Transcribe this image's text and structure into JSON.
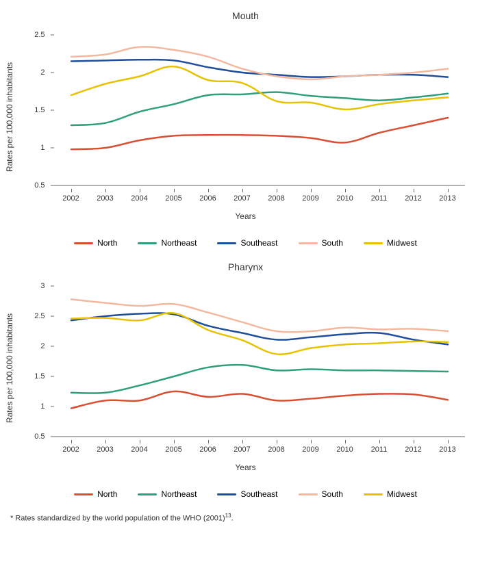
{
  "footnote": "* Rates standardized by the world population of the WHO (2001)",
  "footnote_ref": "13",
  "charts": [
    {
      "title": "Mouth",
      "ylabel": "Rates per 100,000 inhabitants",
      "xlabel": "Years",
      "ylim": [
        0.5,
        2.5
      ],
      "ytick_step": 0.5,
      "yticks": [
        0.5,
        1,
        1.5,
        2,
        2.5
      ],
      "categories": [
        2002,
        2003,
        2004,
        2005,
        2006,
        2007,
        2008,
        2009,
        2010,
        2011,
        2012,
        2013
      ],
      "axis_color": "#666666",
      "tick_fontsize": 11,
      "label_fontsize": 12,
      "title_fontsize": 14,
      "line_width": 2.5,
      "background_color": "#ffffff",
      "series": [
        {
          "name": "North",
          "color": "#d94f34",
          "values": [
            0.98,
            1.0,
            1.1,
            1.16,
            1.17,
            1.17,
            1.16,
            1.13,
            1.07,
            1.2,
            1.3,
            1.4
          ]
        },
        {
          "name": "Northeast",
          "color": "#2f9e7c",
          "values": [
            1.3,
            1.33,
            1.48,
            1.58,
            1.7,
            1.71,
            1.74,
            1.69,
            1.66,
            1.63,
            1.67,
            1.72
          ]
        },
        {
          "name": "Southeast",
          "color": "#1f4e9c",
          "values": [
            2.15,
            2.16,
            2.17,
            2.16,
            2.07,
            2.0,
            1.97,
            1.94,
            1.95,
            1.97,
            1.97,
            1.94
          ]
        },
        {
          "name": "South",
          "color": "#f2b8a0",
          "values": [
            2.21,
            2.24,
            2.34,
            2.3,
            2.21,
            2.05,
            1.95,
            1.91,
            1.95,
            1.97,
            2.0,
            2.05
          ]
        },
        {
          "name": "Midwest",
          "color": "#e6c200",
          "values": [
            1.7,
            1.85,
            1.95,
            2.08,
            1.9,
            1.86,
            1.62,
            1.6,
            1.51,
            1.58,
            1.63,
            1.67
          ]
        }
      ]
    },
    {
      "title": "Pharynx",
      "ylabel": "Rates per 100,000 inhabitants",
      "xlabel": "Years",
      "ylim": [
        0.5,
        3
      ],
      "ytick_step": 0.5,
      "yticks": [
        0.5,
        1,
        1.5,
        2,
        2.5,
        3
      ],
      "categories": [
        2002,
        2003,
        2004,
        2005,
        2006,
        2007,
        2008,
        2009,
        2010,
        2011,
        2012,
        2013
      ],
      "axis_color": "#666666",
      "tick_fontsize": 11,
      "label_fontsize": 12,
      "title_fontsize": 14,
      "line_width": 2.5,
      "background_color": "#ffffff",
      "series": [
        {
          "name": "North",
          "color": "#d94f34",
          "values": [
            0.97,
            1.1,
            1.1,
            1.25,
            1.16,
            1.21,
            1.1,
            1.13,
            1.18,
            1.21,
            1.2,
            1.11
          ]
        },
        {
          "name": "Northeast",
          "color": "#2f9e7c",
          "values": [
            1.23,
            1.23,
            1.35,
            1.5,
            1.65,
            1.69,
            1.6,
            1.62,
            1.6,
            1.6,
            1.59,
            1.58
          ]
        },
        {
          "name": "Southeast",
          "color": "#1f4e9c",
          "values": [
            2.43,
            2.5,
            2.54,
            2.53,
            2.34,
            2.22,
            2.11,
            2.15,
            2.2,
            2.22,
            2.11,
            2.03
          ]
        },
        {
          "name": "South",
          "color": "#f2b8a0",
          "values": [
            2.78,
            2.72,
            2.67,
            2.7,
            2.56,
            2.4,
            2.25,
            2.25,
            2.31,
            2.28,
            2.29,
            2.25
          ]
        },
        {
          "name": "Midwest",
          "color": "#e6c200",
          "values": [
            2.46,
            2.47,
            2.43,
            2.55,
            2.27,
            2.1,
            1.87,
            1.97,
            2.03,
            2.05,
            2.08,
            2.07
          ]
        }
      ]
    }
  ]
}
